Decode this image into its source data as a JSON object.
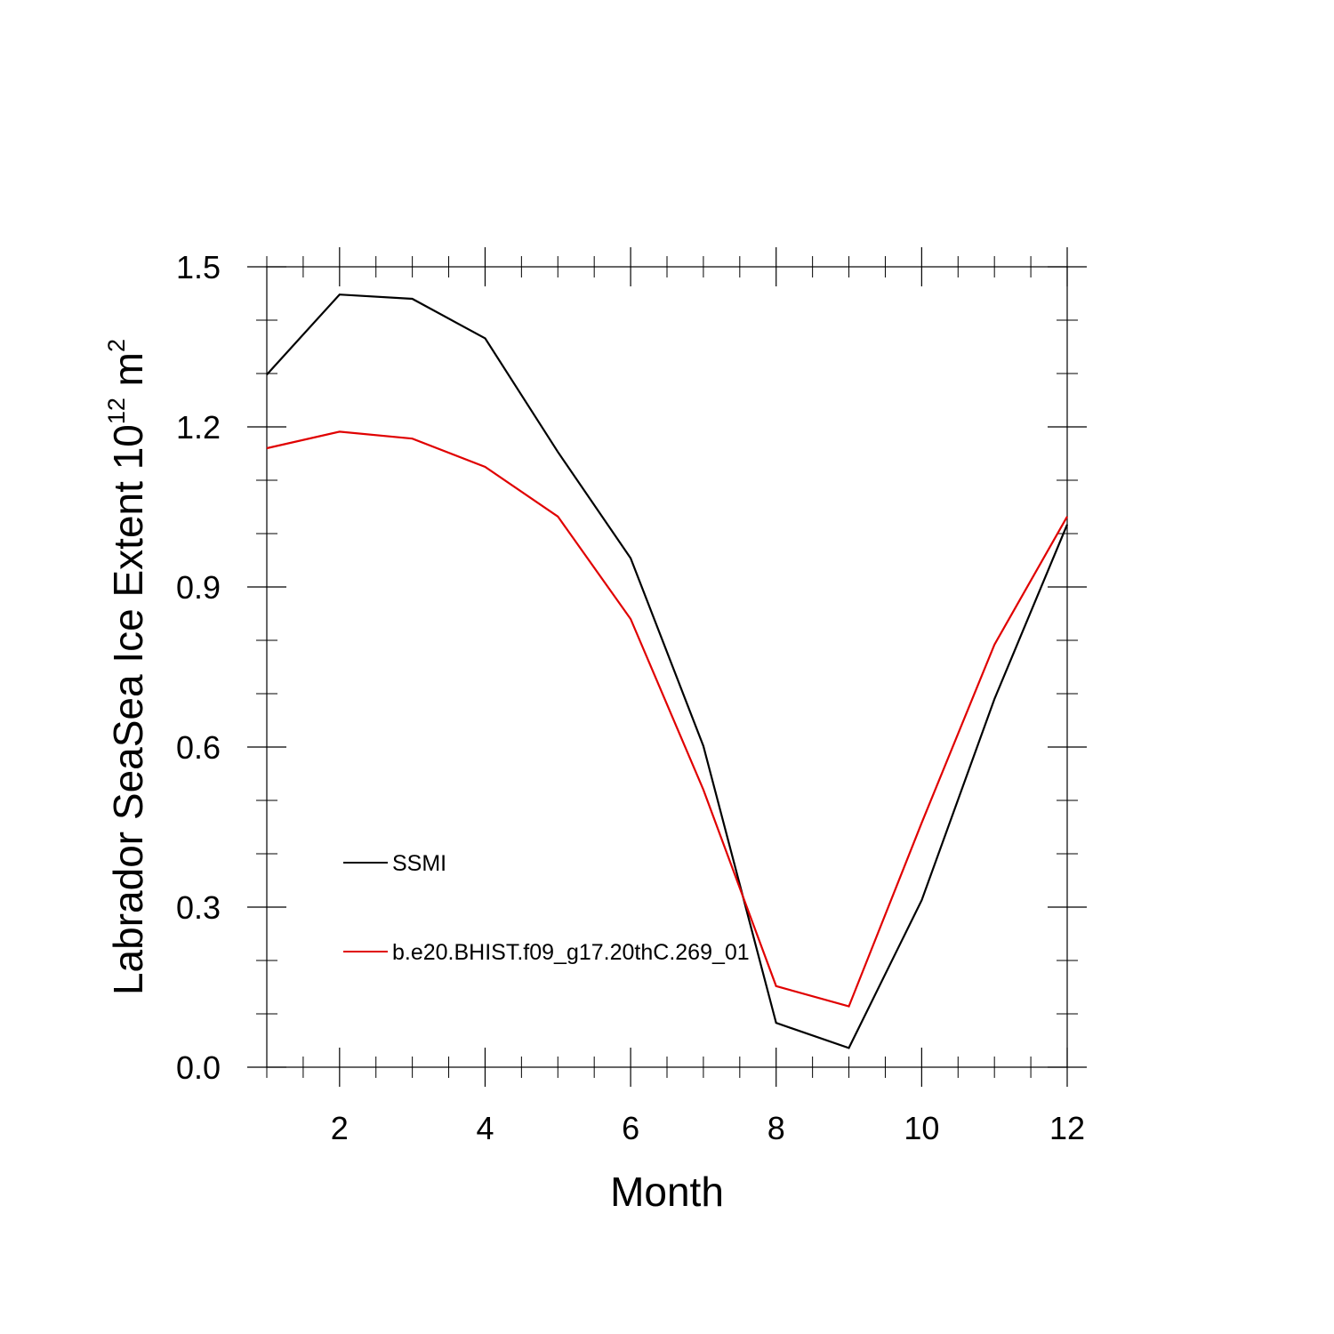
{
  "chart_data": {
    "type": "line",
    "title": "",
    "xlabel": "Month",
    "ylabel": "Labrador SeaSea Ice Extent 10",
    "ylabel_exponent": "12",
    "ylabel_unit": " m",
    "ylabel_unit_exponent": "2",
    "xlim": [
      1,
      12
    ],
    "ylim": [
      0,
      1.5
    ],
    "x_ticks": [
      2,
      4,
      6,
      8,
      10,
      12
    ],
    "x_tick_labels": [
      "2",
      "4",
      "6",
      "8",
      "10",
      "12"
    ],
    "y_ticks": [
      0,
      0.3,
      0.6,
      0.9,
      1.2,
      1.5
    ],
    "y_tick_labels": [
      "0.0",
      "0.3",
      "0.6",
      "0.9",
      "1.2",
      "1.5"
    ],
    "grid": false,
    "legend_position": "lower-left",
    "x": [
      1,
      2,
      3,
      4,
      5,
      6,
      7,
      8,
      9,
      10,
      11,
      12
    ],
    "series": [
      {
        "name": "SSMI",
        "color": "#000000",
        "values": [
          1.298,
          1.448,
          1.44,
          1.366,
          1.153,
          0.954,
          0.602,
          0.083,
          0.036,
          0.313,
          0.69,
          1.017
        ]
      },
      {
        "name": "b.e20.BHIST.f09_g17.20thC.269_01",
        "color": "#e00000",
        "values": [
          1.16,
          1.191,
          1.178,
          1.125,
          1.032,
          0.84,
          0.52,
          0.152,
          0.114,
          0.458,
          0.792,
          1.032
        ]
      }
    ]
  }
}
